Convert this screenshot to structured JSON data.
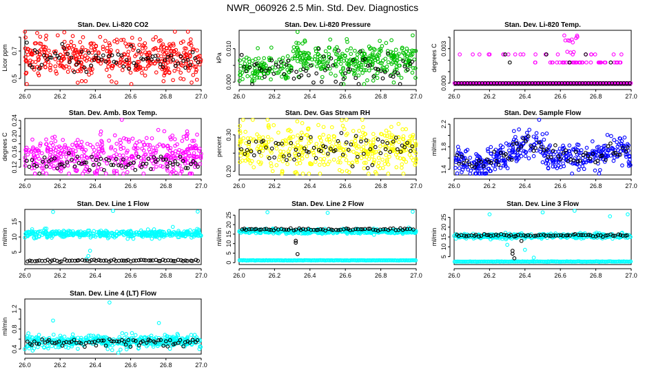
{
  "figure": {
    "title": "NWR_060926  2.5 Min. Std. Dev. Diagnostics"
  },
  "chart_data": [
    {
      "id": "co2",
      "type": "scatter",
      "title": "Stan. Dev. Li-820 CO2",
      "ylabel": "Licor ppm",
      "xlim": [
        26.0,
        27.0
      ],
      "ylim": [
        0.45,
        0.85
      ],
      "xticks": [
        26.0,
        26.2,
        26.4,
        26.6,
        26.8,
        27.0
      ],
      "xticklabels": [
        "26.0",
        "26.2",
        "26.4",
        "26.6",
        "26.8",
        "27.0"
      ],
      "yticks": [
        0.5,
        0.6,
        0.7,
        0.8
      ],
      "yticklabels": [
        "0.5",
        "",
        "0.7",
        ""
      ],
      "color": "#ff0000",
      "main_center": 0.65,
      "main_spread": 0.07,
      "main_n": 420,
      "black_center": 0.64,
      "black_spread": 0.05,
      "black_n": 70,
      "extra_points": [
        {
          "x": 26.07,
          "y": 0.83
        },
        {
          "x": 26.3,
          "y": 0.47
        },
        {
          "x": 26.33,
          "y": 0.8
        }
      ]
    },
    {
      "id": "pressure",
      "type": "scatter",
      "title": "Stan. Dev. Li-820 Pressure",
      "ylabel": "kPa",
      "xlim": [
        26.0,
        27.0
      ],
      "ylim": [
        -0.001,
        0.0155
      ],
      "xticks": [
        26.0,
        26.2,
        26.4,
        26.6,
        26.8,
        27.0
      ],
      "xticklabels": [
        "26.0",
        "26.2",
        "26.4",
        "26.6",
        "26.8",
        "27.0"
      ],
      "yticks": [
        0.0,
        0.005,
        0.01
      ],
      "yticklabels": [
        "0.000",
        "",
        "0.010"
      ],
      "color": "#00c000",
      "main_center": 0.0065,
      "main_spread": 0.0025,
      "main_n": 420,
      "black_center": 0.004,
      "black_spread": 0.0025,
      "black_n": 70,
      "extra_points": [
        {
          "x": 26.33,
          "y": 0.015
        },
        {
          "x": 26.98,
          "y": 0.014
        }
      ]
    },
    {
      "id": "temp",
      "type": "scatter",
      "title": "Stan. Dev. Li-820 Temp.",
      "ylabel": "degrees C",
      "xlim": [
        26.0,
        27.0
      ],
      "ylim": [
        -0.0002,
        0.0046
      ],
      "xticks": [
        26.0,
        26.2,
        26.4,
        26.6,
        26.8,
        27.0
      ],
      "xticklabels": [
        "26.0",
        "26.2",
        "26.4",
        "26.6",
        "26.8",
        "27.0"
      ],
      "yticks": [
        0.0,
        0.001,
        0.002,
        0.003,
        0.004
      ],
      "yticklabels": [
        "0.000",
        "",
        "",
        "0.003",
        ""
      ],
      "color": "#ff00ff",
      "levels": [
        0.0,
        0.0018,
        0.0025
      ],
      "black_level": 0.0
    },
    {
      "id": "ambbox",
      "type": "scatter",
      "title": "Stan. Dev. Amb. Box Temp.",
      "ylabel": "degrees C",
      "xlim": [
        26.0,
        27.0
      ],
      "ylim": [
        0.1,
        0.245
      ],
      "xticks": [
        26.0,
        26.2,
        26.4,
        26.6,
        26.8,
        27.0
      ],
      "xticklabels": [
        "26.0",
        "26.2",
        "26.4",
        "26.6",
        "26.8",
        "27.0"
      ],
      "yticks": [
        0.12,
        0.14,
        0.16,
        0.18,
        0.2,
        0.22,
        0.24
      ],
      "yticklabels": [
        "0.12",
        "",
        "0.16",
        "",
        "0.20",
        "",
        "0.24"
      ],
      "color": "#ff00ff",
      "main_center": 0.15,
      "main_spread": 0.025,
      "main_n": 420,
      "black_center": 0.13,
      "black_spread": 0.01,
      "black_n": 70,
      "extra_points": [
        {
          "x": 26.55,
          "y": 0.243
        }
      ]
    },
    {
      "id": "gasrh",
      "type": "scatter",
      "title": "Stan. Dev. Gas Stream RH",
      "ylabel": "percent",
      "xlim": [
        26.0,
        27.0
      ],
      "ylim": [
        0.19,
        0.345
      ],
      "xticks": [
        26.0,
        26.2,
        26.4,
        26.6,
        26.8,
        27.0
      ],
      "xticklabels": [
        "26.0",
        "26.2",
        "26.4",
        "26.6",
        "26.8",
        "27.0"
      ],
      "yticks": [
        0.2,
        0.25,
        0.3
      ],
      "yticklabels": [
        "0.20",
        "",
        "0.30"
      ],
      "color": "#ffff00",
      "main_center": 0.265,
      "main_spread": 0.03,
      "main_n": 420,
      "black_center": 0.26,
      "black_spread": 0.02,
      "black_n": 70,
      "extra_points": [
        {
          "x": 26.58,
          "y": 0.34
        },
        {
          "x": 26.9,
          "y": 0.33
        }
      ]
    },
    {
      "id": "sampleflow",
      "type": "scatter",
      "title": "Stan. Dev. Sample Flow",
      "ylabel": "ml/min",
      "xlim": [
        26.0,
        27.0
      ],
      "ylim": [
        1.3,
        2.3
      ],
      "xticks": [
        26.0,
        26.2,
        26.4,
        26.6,
        26.8,
        27.0
      ],
      "xticklabels": [
        "26.0",
        "26.2",
        "26.4",
        "26.6",
        "26.8",
        "27.0"
      ],
      "yticks": [
        1.4,
        1.6,
        1.8,
        2.0,
        2.2
      ],
      "yticklabels": [
        "1.4",
        "",
        "1.8",
        "",
        "2.2"
      ],
      "color": "#0000ff",
      "trend": "sampleflow",
      "main_spread": 0.12,
      "main_n": 420,
      "black_n": 70,
      "extra_points": [
        {
          "x": 26.48,
          "y": 2.28
        }
      ]
    },
    {
      "id": "line1",
      "type": "scatter",
      "title": "Stan. Dev. Line 1 Flow",
      "ylabel": "ml/min",
      "xlim": [
        26.0,
        27.0
      ],
      "ylim": [
        1.0,
        19.0
      ],
      "xticks": [
        26.0,
        26.2,
        26.4,
        26.6,
        26.8,
        27.0
      ],
      "xticklabels": [
        "26.0",
        "26.2",
        "26.4",
        "26.6",
        "26.8",
        "27.0"
      ],
      "yticks": [
        5,
        10,
        15
      ],
      "yticklabels": [
        "5",
        "10",
        "15"
      ],
      "color": "#00ffff",
      "main_center": 11.0,
      "main_spread": 0.6,
      "main_n": 420,
      "black_center": 2.3,
      "black_spread": 0.15,
      "black_n": 70,
      "extra_points": [
        {
          "x": 26.16,
          "y": 18.2
        },
        {
          "x": 26.5,
          "y": 18.5
        },
        {
          "x": 26.98,
          "y": 18.3
        },
        {
          "x": 26.37,
          "y": 5.5
        },
        {
          "x": 26.36,
          "y": 3.8
        },
        {
          "x": 26.35,
          "y": 2.9
        }
      ]
    },
    {
      "id": "line2",
      "type": "scatter",
      "title": "Stan. Dev. Line 2 Flow",
      "ylabel": "ml/min",
      "xlim": [
        26.0,
        27.0
      ],
      "ylim": [
        -1.0,
        28.0
      ],
      "xticks": [
        26.0,
        26.2,
        26.4,
        26.6,
        26.8,
        27.0
      ],
      "xticklabels": [
        "26.0",
        "26.2",
        "26.4",
        "26.6",
        "26.8",
        "27.0"
      ],
      "yticks": [
        0,
        5,
        10,
        15,
        20,
        25
      ],
      "yticklabels": [
        "0",
        "5",
        "10",
        "15",
        "20",
        "25"
      ],
      "color": "#00ffff",
      "main_center": 16.5,
      "main_spread": 0.6,
      "main_n": 420,
      "low_band": 1.2,
      "black_center": 17.5,
      "black_spread": 0.3,
      "black_n": 70,
      "extra_points": [
        {
          "x": 26.16,
          "y": 26.5
        },
        {
          "x": 26.98,
          "y": 26.8
        },
        {
          "x": 26.5,
          "y": 26.2
        }
      ],
      "black_extra": [
        {
          "x": 26.32,
          "y": 11.5
        },
        {
          "x": 26.32,
          "y": 10.5
        },
        {
          "x": 26.33,
          "y": 4.5
        }
      ]
    },
    {
      "id": "line3",
      "type": "scatter",
      "title": "Stan. Dev. Line 3 Flow",
      "ylabel": "ml/min",
      "xlim": [
        26.0,
        27.0
      ],
      "ylim": [
        1.0,
        29.0
      ],
      "xticks": [
        26.0,
        26.2,
        26.4,
        26.6,
        26.8,
        27.0
      ],
      "xticklabels": [
        "26.0",
        "26.2",
        "26.4",
        "26.6",
        "26.8",
        "27.0"
      ],
      "yticks": [
        5,
        10,
        15,
        20,
        25
      ],
      "yticklabels": [
        "5",
        "10",
        "15",
        "20",
        "25"
      ],
      "color": "#00ffff",
      "main_center": 15.5,
      "main_spread": 0.6,
      "main_n": 420,
      "low_band": 2.5,
      "black_center": 15.8,
      "black_spread": 0.3,
      "black_n": 70,
      "extra_points": [
        {
          "x": 26.2,
          "y": 26.5
        },
        {
          "x": 26.5,
          "y": 27.5
        },
        {
          "x": 26.68,
          "y": 28.5
        },
        {
          "x": 26.88,
          "y": 25.5
        },
        {
          "x": 26.98,
          "y": 26.5
        },
        {
          "x": 26.45,
          "y": 4.5
        },
        {
          "x": 26.4,
          "y": 8.5
        },
        {
          "x": 26.3,
          "y": 11.0
        }
      ],
      "black_extra": [
        {
          "x": 26.33,
          "y": 8.0
        },
        {
          "x": 26.33,
          "y": 6.5
        },
        {
          "x": 26.34,
          "y": 4.2
        },
        {
          "x": 26.38,
          "y": 13.0
        }
      ]
    },
    {
      "id": "line4",
      "type": "scatter",
      "title": "Stan. Dev. Line 4 (LT) Flow",
      "ylabel": "ml/min",
      "xlim": [
        26.0,
        27.0
      ],
      "ylim": [
        0.3,
        1.4
      ],
      "xticks": [
        26.0,
        26.2,
        26.4,
        26.6,
        26.8,
        27.0
      ],
      "xticklabels": [
        "26.0",
        "26.2",
        "26.4",
        "26.6",
        "26.8",
        "27.0"
      ],
      "yticks": [
        0.4,
        0.6,
        0.8,
        1.0,
        1.2
      ],
      "yticklabels": [
        "0.4",
        "",
        "0.8",
        "",
        "1.2"
      ],
      "color": "#00ffff",
      "main_center": 0.55,
      "main_spread": 0.06,
      "main_n": 420,
      "black_center": 0.53,
      "black_spread": 0.04,
      "black_n": 70,
      "extra_points": [
        {
          "x": 26.16,
          "y": 0.97
        },
        {
          "x": 26.48,
          "y": 1.33
        },
        {
          "x": 26.76,
          "y": 0.92
        },
        {
          "x": 26.53,
          "y": 0.32
        },
        {
          "x": 26.47,
          "y": 0.4
        }
      ]
    }
  ]
}
